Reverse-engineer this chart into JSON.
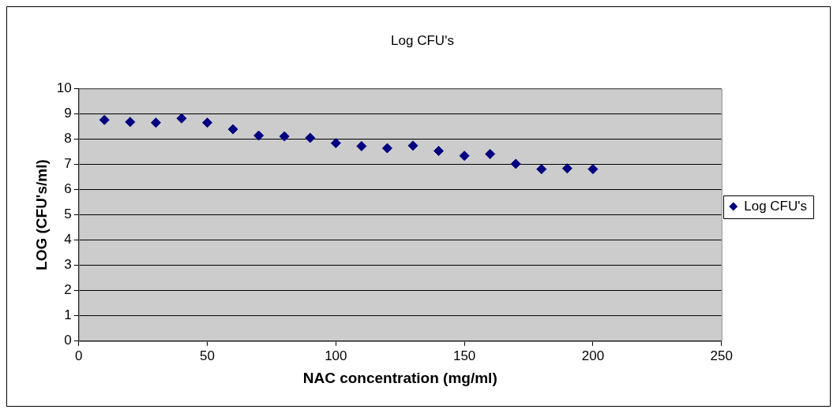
{
  "chart_data": {
    "type": "scatter",
    "title": "Log CFU's",
    "xlabel": "NAC concentration (mg/ml)",
    "ylabel": "LOG (CFU's/ml)",
    "x": [
      10,
      20,
      30,
      40,
      50,
      60,
      70,
      80,
      90,
      100,
      110,
      120,
      130,
      140,
      150,
      160,
      170,
      180,
      190,
      200
    ],
    "series": [
      {
        "name": "Log CFU's",
        "color": "#000080",
        "values": [
          8.76,
          8.68,
          8.65,
          8.82,
          8.65,
          8.39,
          8.14,
          8.11,
          8.05,
          7.84,
          7.72,
          7.64,
          7.74,
          7.53,
          7.34,
          7.41,
          7.02,
          6.81,
          6.84,
          6.81
        ]
      }
    ],
    "xlim": [
      0,
      250
    ],
    "xticks": [
      0,
      50,
      100,
      150,
      200,
      250
    ],
    "ylim": [
      0,
      10
    ],
    "yticks": [
      0,
      1,
      2,
      3,
      4,
      5,
      6,
      7,
      8,
      9,
      10
    ],
    "grid": "y",
    "legend": "right",
    "marker": "diamond"
  }
}
